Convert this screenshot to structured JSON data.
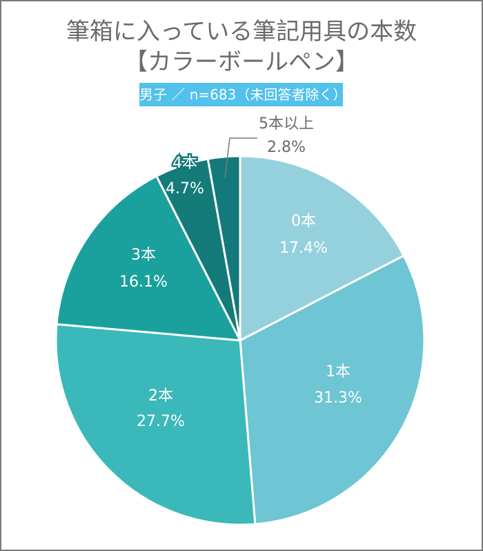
{
  "header": {
    "title_line1": "筆箱に入っている筆記用具の本数",
    "title_line2": "【カラーボールペン】",
    "badge": "男子 ／ n=683（未回答者除く）"
  },
  "colors": {
    "title": "#6b6b6b",
    "badge_bg": "#52c1ec",
    "border": "#7a7a7a"
  },
  "chart_data": {
    "type": "pie",
    "title": "筆箱に入っている筆記用具の本数【カラーボールペン】",
    "subtitle": "男子 ／ n=683（未回答者除く）",
    "categories": [
      "0本",
      "1本",
      "2本",
      "3本",
      "4本",
      "5本以上"
    ],
    "values": [
      17.4,
      31.3,
      27.7,
      16.1,
      4.7,
      2.8
    ],
    "value_labels": [
      "17.4%",
      "31.3%",
      "27.7%",
      "16.1%",
      "4.7%",
      "2.8%"
    ],
    "colors": [
      "#95d1dc",
      "#6ec5d3",
      "#3bb8b9",
      "#1ba19d",
      "#147b79",
      "#14797a"
    ],
    "start_angle": "12 o'clock",
    "direction": "clockwise",
    "legend": "none (labels on slices)"
  }
}
